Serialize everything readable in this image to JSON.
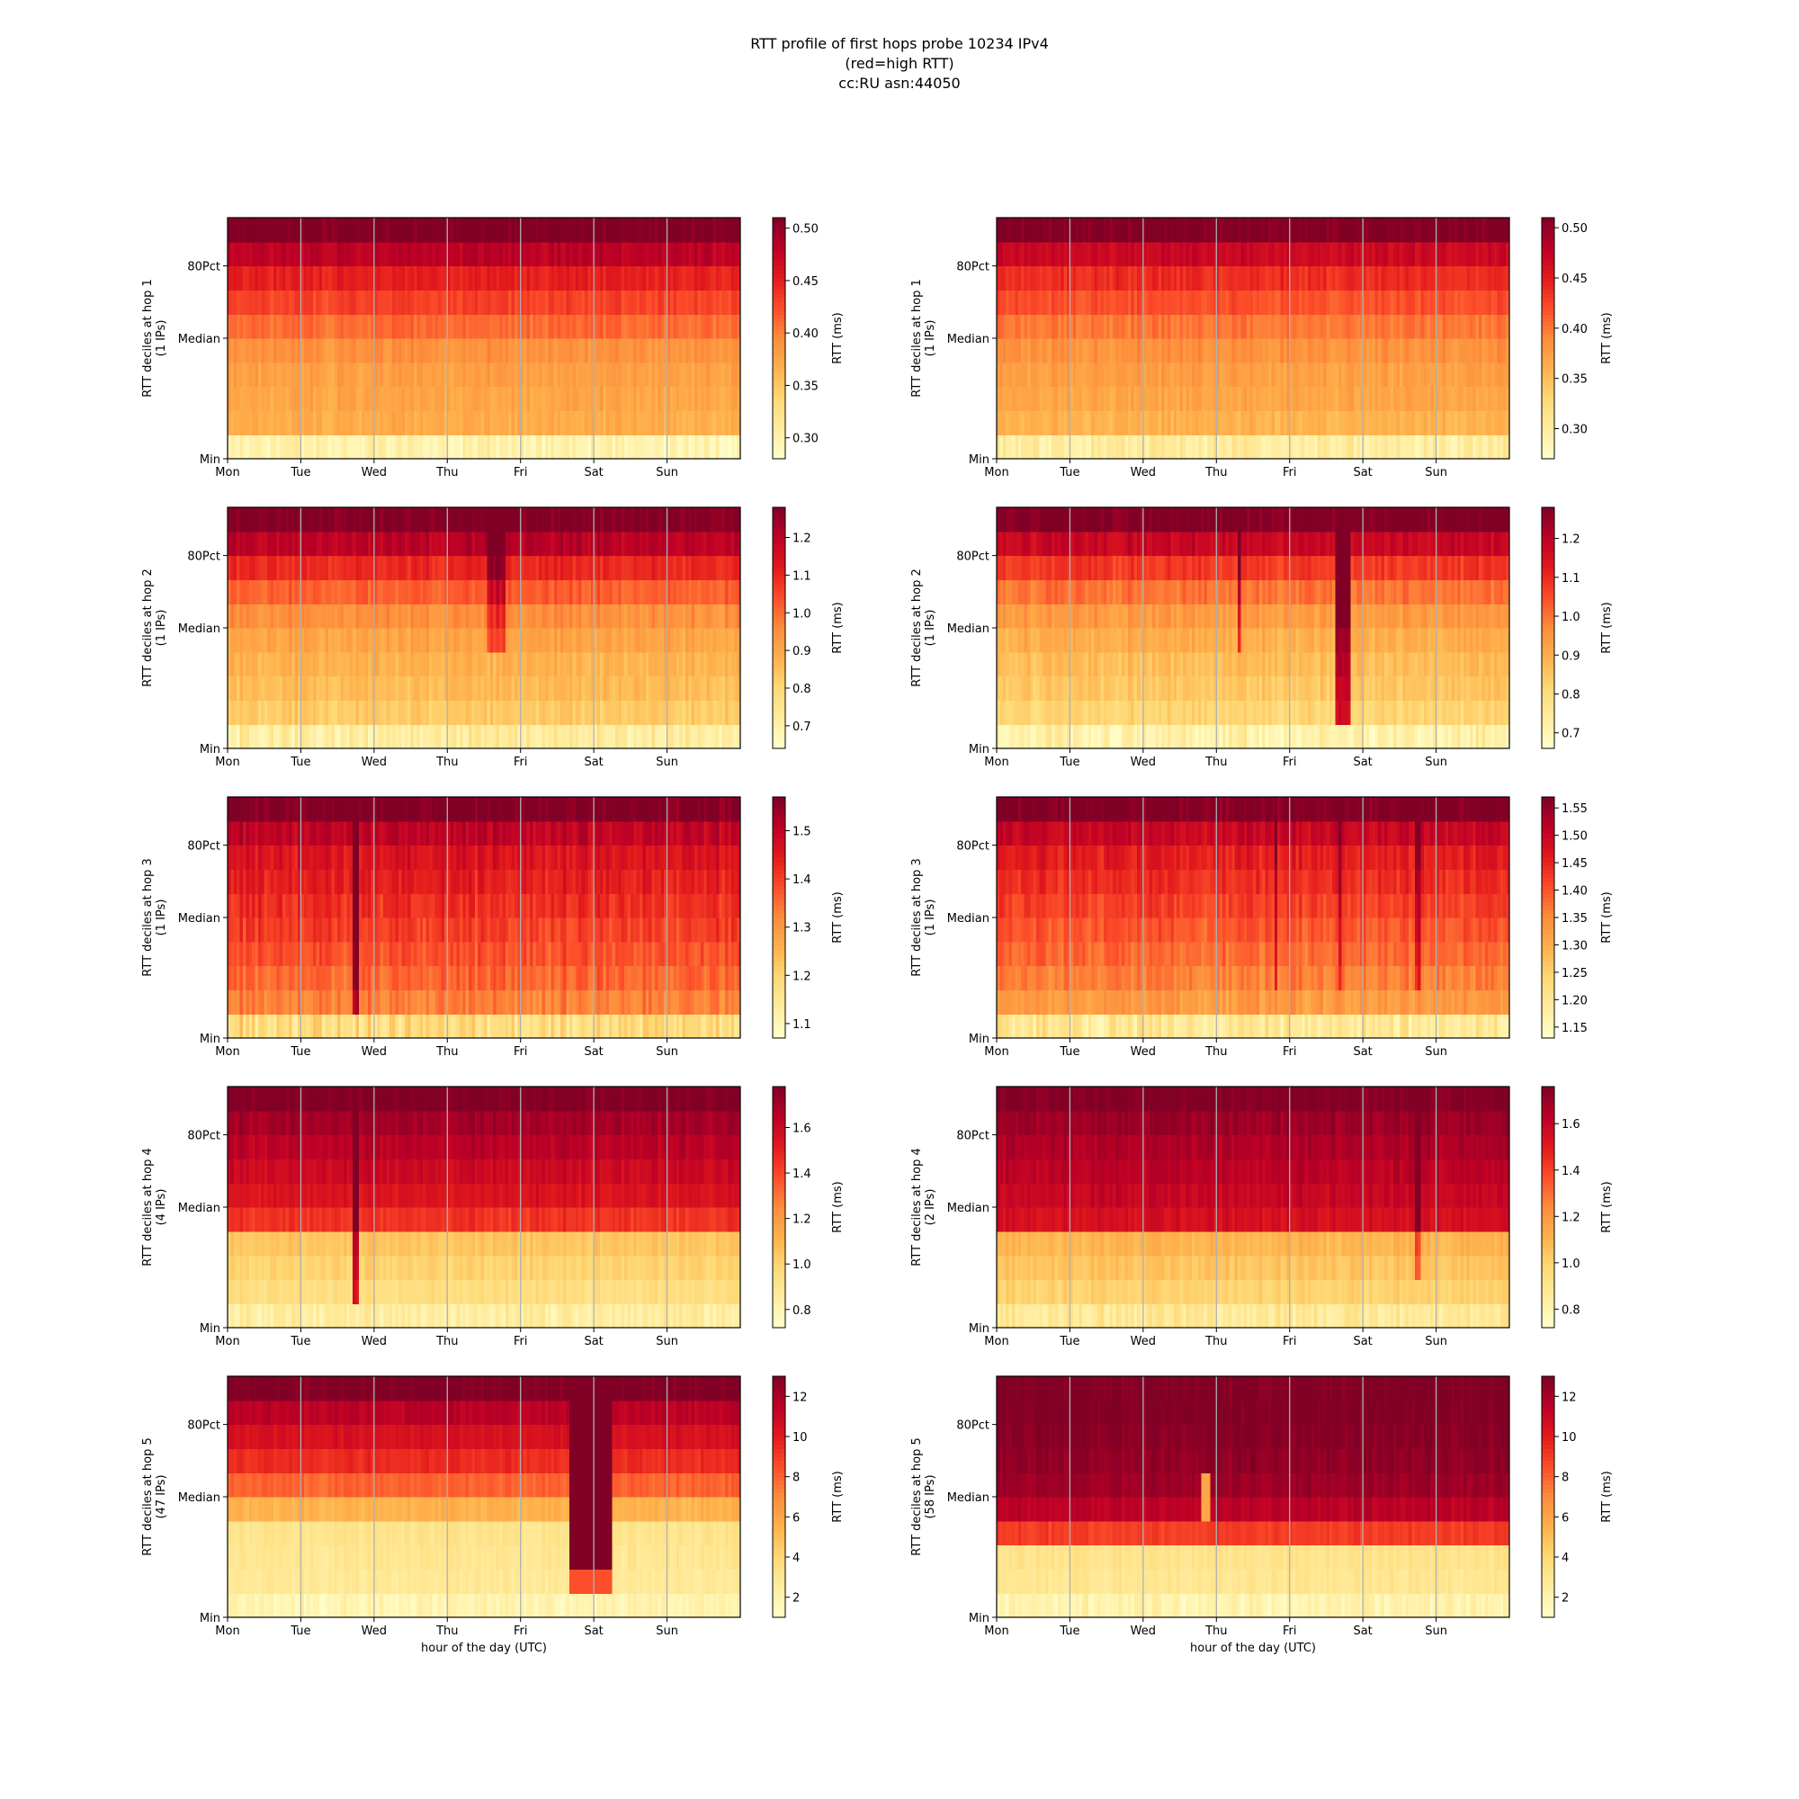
{
  "title_lines": [
    "RTT profile of first hops probe 10234 IPv4",
    "(red=high RTT)",
    "cc:RU asn:44050"
  ],
  "colormap": [
    "#ffffcc",
    "#ffeda0",
    "#fed976",
    "#feb24c",
    "#fd8d3c",
    "#fc4e2a",
    "#e31a1c",
    "#bd0026",
    "#800026"
  ],
  "chart_data": [
    {
      "type": "heatmap",
      "panel": "left",
      "hop": 1,
      "ylabel": [
        "RTT deciles at hop 1",
        "(1 IPs)"
      ],
      "xlabel": "",
      "x_categories": [
        "Mon",
        "Tue",
        "Wed",
        "Thu",
        "Fri",
        "Sat",
        "Sun"
      ],
      "y_ticks": [
        "Min",
        "Median",
        "80Pct"
      ],
      "colorbar": {
        "label": "RTT (ms)",
        "range": [
          0.28,
          0.51
        ],
        "ticks": [
          "0.30",
          "0.35",
          "0.40",
          "0.45",
          "0.50"
        ],
        "tick_values": [
          0.3,
          0.35,
          0.4,
          0.45,
          0.5
        ]
      },
      "deciles": [
        0.3,
        0.37,
        0.375,
        0.38,
        0.39,
        0.41,
        0.43,
        0.45,
        0.48,
        0.51
      ],
      "noise": 0.01,
      "events": []
    },
    {
      "type": "heatmap",
      "panel": "right",
      "hop": 1,
      "ylabel": [
        "RTT deciles at hop 1",
        "(1 IPs)"
      ],
      "xlabel": "",
      "x_categories": [
        "Mon",
        "Tue",
        "Wed",
        "Thu",
        "Fri",
        "Sat",
        "Sun"
      ],
      "y_ticks": [
        "Min",
        "Median",
        "80Pct"
      ],
      "colorbar": {
        "label": "RTT (ms)",
        "range": [
          0.27,
          0.51
        ],
        "ticks": [
          "0.30",
          "0.35",
          "0.40",
          "0.45",
          "0.50"
        ],
        "tick_values": [
          0.3,
          0.35,
          0.4,
          0.45,
          0.5
        ]
      },
      "deciles": [
        0.3,
        0.36,
        0.37,
        0.375,
        0.385,
        0.4,
        0.42,
        0.44,
        0.47,
        0.51
      ],
      "noise": 0.01,
      "events": []
    },
    {
      "type": "heatmap",
      "panel": "left",
      "hop": 2,
      "ylabel": [
        "RTT deciles at hop 2",
        "(1 IPs)"
      ],
      "xlabel": "",
      "x_categories": [
        "Mon",
        "Tue",
        "Wed",
        "Thu",
        "Fri",
        "Sat",
        "Sun"
      ],
      "y_ticks": [
        "Min",
        "Median",
        "80Pct"
      ],
      "colorbar": {
        "label": "RTT (ms)",
        "range": [
          0.64,
          1.28
        ],
        "ticks": [
          "0.7",
          "0.8",
          "0.9",
          "1.0",
          "1.1",
          "1.2"
        ],
        "tick_values": [
          0.7,
          0.8,
          0.9,
          1.0,
          1.1,
          1.2
        ]
      },
      "deciles": [
        0.72,
        0.83,
        0.86,
        0.88,
        0.91,
        0.95,
        1.02,
        1.1,
        1.2,
        1.28
      ],
      "noise": 0.03,
      "events": [
        {
          "day": 3.65,
          "width": 0.25,
          "add": 0.15,
          "from": 4
        },
        {
          "day": 1.0,
          "width": 0.03,
          "add": 0.2,
          "from": 3
        }
      ]
    },
    {
      "type": "heatmap",
      "panel": "right",
      "hop": 2,
      "ylabel": [
        "RTT deciles at hop 2",
        "(1 IPs)"
      ],
      "xlabel": "",
      "x_categories": [
        "Mon",
        "Tue",
        "Wed",
        "Thu",
        "Fri",
        "Sat",
        "Sun"
      ],
      "y_ticks": [
        "Min",
        "Median",
        "80Pct"
      ],
      "colorbar": {
        "label": "RTT (ms)",
        "range": [
          0.66,
          1.28
        ],
        "ticks": [
          "0.7",
          "0.8",
          "0.9",
          "1.0",
          "1.1",
          "1.2"
        ],
        "tick_values": [
          0.7,
          0.8,
          0.9,
          1.0,
          1.1,
          1.2
        ]
      },
      "deciles": [
        0.72,
        0.82,
        0.85,
        0.87,
        0.9,
        0.94,
        1.0,
        1.08,
        1.18,
        1.28
      ],
      "noise": 0.03,
      "events": [
        {
          "day": 4.73,
          "width": 0.17,
          "add": 0.35,
          "from": 1
        },
        {
          "day": 3.3,
          "width": 0.03,
          "add": 0.2,
          "from": 4
        }
      ]
    },
    {
      "type": "heatmap",
      "panel": "left",
      "hop": 3,
      "ylabel": [
        "RTT deciles at hop 3",
        "(1 IPs)"
      ],
      "xlabel": "",
      "x_categories": [
        "Mon",
        "Tue",
        "Wed",
        "Thu",
        "Fri",
        "Sat",
        "Sun"
      ],
      "y_ticks": [
        "Min",
        "Median",
        "80Pct"
      ],
      "colorbar": {
        "label": "RTT (ms)",
        "range": [
          1.07,
          1.57
        ],
        "ticks": [
          "1.1",
          "1.2",
          "1.3",
          "1.4",
          "1.5"
        ],
        "tick_values": [
          1.1,
          1.2,
          1.3,
          1.4,
          1.5
        ]
      },
      "deciles": [
        1.18,
        1.33,
        1.36,
        1.38,
        1.4,
        1.42,
        1.44,
        1.46,
        1.5,
        1.57
      ],
      "noise": 0.03,
      "events": [
        {
          "day": 1.75,
          "width": 0.05,
          "add": 0.2,
          "from": 1
        }
      ]
    },
    {
      "type": "heatmap",
      "panel": "right",
      "hop": 3,
      "ylabel": [
        "RTT deciles at hop 3",
        "(1 IPs)"
      ],
      "xlabel": "",
      "x_categories": [
        "Mon",
        "Tue",
        "Wed",
        "Thu",
        "Fri",
        "Sat",
        "Sun"
      ],
      "y_ticks": [
        "Min",
        "Median",
        "80Pct"
      ],
      "colorbar": {
        "label": "RTT (ms)",
        "range": [
          1.13,
          1.57
        ],
        "ticks": [
          "1.15",
          "1.20",
          "1.25",
          "1.30",
          "1.35",
          "1.40",
          "1.45",
          "1.50",
          "1.55"
        ],
        "tick_values": [
          1.15,
          1.2,
          1.25,
          1.3,
          1.35,
          1.4,
          1.45,
          1.5,
          1.55
        ]
      },
      "deciles": [
        1.2,
        1.33,
        1.36,
        1.38,
        1.4,
        1.42,
        1.44,
        1.46,
        1.5,
        1.57
      ],
      "noise": 0.025,
      "events": [
        {
          "day": 3.8,
          "width": 0.05,
          "add": 0.08,
          "from": 2
        },
        {
          "day": 4.7,
          "width": 0.05,
          "add": 0.08,
          "from": 2
        },
        {
          "day": 5.75,
          "width": 0.05,
          "add": 0.08,
          "from": 2
        }
      ]
    },
    {
      "type": "heatmap",
      "panel": "left",
      "hop": 4,
      "ylabel": [
        "RTT deciles at hop 4",
        "(4 IPs)"
      ],
      "xlabel": "",
      "x_categories": [
        "Mon",
        "Tue",
        "Wed",
        "Thu",
        "Fri",
        "Sat",
        "Sun"
      ],
      "y_ticks": [
        "Min",
        "Median",
        "80Pct"
      ],
      "colorbar": {
        "label": "RTT (ms)",
        "range": [
          0.72,
          1.78
        ],
        "ticks": [
          "0.8",
          "1.0",
          "1.2",
          "1.4",
          "1.6"
        ],
        "tick_values": [
          0.8,
          1.0,
          1.2,
          1.4,
          1.6
        ]
      },
      "deciles": [
        0.85,
        0.95,
        1.0,
        1.05,
        1.45,
        1.55,
        1.6,
        1.65,
        1.7,
        1.78
      ],
      "noise": 0.04,
      "events": [
        {
          "day": 1.75,
          "width": 0.05,
          "add": 0.6,
          "from": 1
        }
      ]
    },
    {
      "type": "heatmap",
      "panel": "right",
      "hop": 4,
      "ylabel": [
        "RTT deciles at hop 4",
        "(2 IPs)"
      ],
      "xlabel": "",
      "x_categories": [
        "Mon",
        "Tue",
        "Wed",
        "Thu",
        "Fri",
        "Sat",
        "Sun"
      ],
      "y_ticks": [
        "Min",
        "Median",
        "80Pct"
      ],
      "colorbar": {
        "label": "RTT (ms)",
        "range": [
          0.72,
          1.76
        ],
        "ticks": [
          "0.8",
          "1.0",
          "1.2",
          "1.4",
          "1.6"
        ],
        "tick_values": [
          0.8,
          1.0,
          1.2,
          1.4,
          1.6
        ]
      },
      "deciles": [
        0.88,
        1.0,
        1.05,
        1.1,
        1.55,
        1.6,
        1.63,
        1.66,
        1.7,
        1.76
      ],
      "noise": 0.04,
      "events": [
        {
          "day": 5.75,
          "width": 0.06,
          "add": 0.3,
          "from": 2
        }
      ]
    },
    {
      "type": "heatmap",
      "panel": "left",
      "hop": 5,
      "ylabel": [
        "RTT deciles at hop 5",
        "(47 IPs)"
      ],
      "xlabel": "hour of the day (UTC)",
      "x_categories": [
        "Mon",
        "Tue",
        "Wed",
        "Thu",
        "Fri",
        "Sat",
        "Sun"
      ],
      "y_ticks": [
        "Min",
        "Median",
        "80Pct"
      ],
      "colorbar": {
        "label": "RTT (ms)",
        "range": [
          1.0,
          13.0
        ],
        "ticks": [
          "2",
          "4",
          "6",
          "8",
          "10",
          "12"
        ],
        "tick_values": [
          2,
          4,
          6,
          8,
          10,
          12
        ]
      },
      "deciles": [
        2.0,
        2.8,
        3.0,
        3.2,
        5.5,
        8.0,
        9.5,
        10.5,
        11.5,
        13.0
      ],
      "noise": 0.4,
      "events": [
        {
          "day": 4.95,
          "width": 0.6,
          "set": 13.0,
          "from": 2
        },
        {
          "day": 4.95,
          "width": 0.6,
          "set": 8.5,
          "from": 1,
          "to": 1
        }
      ]
    },
    {
      "type": "heatmap",
      "panel": "right",
      "hop": 5,
      "ylabel": [
        "RTT deciles at hop 5",
        "(58 IPs)"
      ],
      "xlabel": "hour of the day (UTC)",
      "x_categories": [
        "Mon",
        "Tue",
        "Wed",
        "Thu",
        "Fri",
        "Sat",
        "Sun"
      ],
      "y_ticks": [
        "Min",
        "Median",
        "80Pct"
      ],
      "colorbar": {
        "label": "RTT (ms)",
        "range": [
          1.0,
          13.0
        ],
        "ticks": [
          "2",
          "4",
          "6",
          "8",
          "10",
          "12"
        ],
        "tick_values": [
          2,
          4,
          6,
          8,
          10,
          12
        ]
      },
      "deciles": [
        2.0,
        3.0,
        3.2,
        9.0,
        11.5,
        12.3,
        12.6,
        12.8,
        13.0,
        13.0
      ],
      "noise": 0.4,
      "events": [
        {
          "day": 2.85,
          "width": 0.1,
          "set": 6.0,
          "from": 4,
          "to": 5
        }
      ]
    }
  ]
}
